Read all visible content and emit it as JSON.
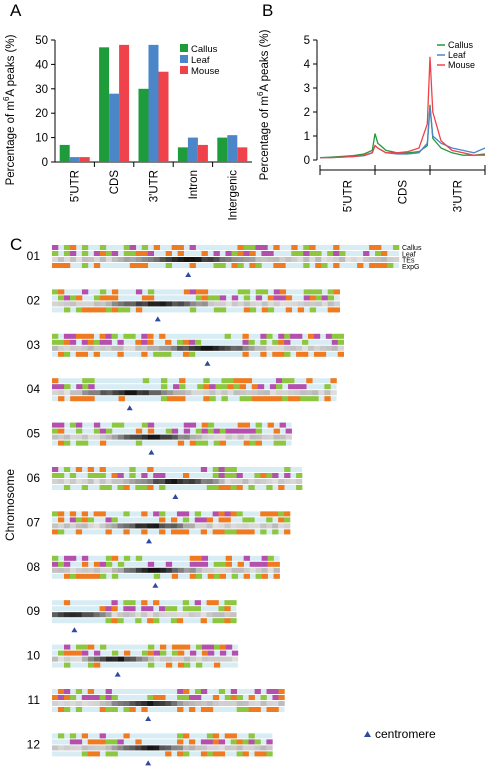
{
  "panels": {
    "a": "A",
    "b": "B",
    "c": "C"
  },
  "colors": {
    "callus": "#1e9b3b",
    "leaf": "#4a86c8",
    "mouse": "#f0424a",
    "track_green": "#8dc63f",
    "track_magenta": "#b44fae",
    "track_orange": "#f07a20",
    "track_bg": "#d8ecf4",
    "centromere": "#2f4a9e"
  },
  "chart_data": [
    {
      "type": "bar",
      "ylabel": "Percentage of m6A peaks (%)",
      "ylabel_main": "Percentage of m",
      "ylabel_sup": "6",
      "ylabel_rest": "A peaks (%)",
      "categories": [
        "5'UTR",
        "CDS",
        "3'UTR",
        "Intron",
        "Intergenic"
      ],
      "ylim": [
        0,
        50
      ],
      "yticks": [
        "0",
        "10",
        "20",
        "30",
        "40",
        "50"
      ],
      "legend_position": "top-right",
      "series": [
        {
          "name": "Callus",
          "values": [
            7,
            47,
            30,
            6,
            10
          ]
        },
        {
          "name": "Leaf",
          "values": [
            2,
            28,
            48,
            10,
            11
          ]
        },
        {
          "name": "Mouse",
          "values": [
            2,
            48,
            37,
            7,
            6
          ]
        }
      ]
    },
    {
      "type": "line",
      "ylabel": "Percentage of m6A peaks (%)",
      "ylabel_main": "Percentage of m",
      "ylabel_sup": "6",
      "ylabel_rest": "A peaks (%)",
      "regions": [
        "5'UTR",
        "CDS",
        "3'UTR"
      ],
      "ylim": [
        0,
        5
      ],
      "yticks": [
        "0",
        "1",
        "2",
        "3",
        "4",
        "5"
      ],
      "legend_position": "top-right",
      "series": [
        {
          "name": "Callus",
          "points": [
            [
              0,
              0.1
            ],
            [
              0.2,
              0.12
            ],
            [
              0.4,
              0.15
            ],
            [
              0.6,
              0.18
            ],
            [
              0.8,
              0.25
            ],
            [
              0.95,
              0.4
            ],
            [
              1.0,
              1.1
            ],
            [
              1.05,
              0.7
            ],
            [
              1.2,
              0.4
            ],
            [
              1.4,
              0.3
            ],
            [
              1.6,
              0.3
            ],
            [
              1.8,
              0.35
            ],
            [
              1.95,
              0.6
            ],
            [
              2.0,
              2.3
            ],
            [
              2.05,
              0.9
            ],
            [
              2.2,
              0.5
            ],
            [
              2.4,
              0.3
            ],
            [
              2.6,
              0.2
            ],
            [
              2.8,
              0.2
            ],
            [
              3.0,
              0.25
            ]
          ]
        },
        {
          "name": "Leaf",
          "points": [
            [
              0,
              0.1
            ],
            [
              0.2,
              0.1
            ],
            [
              0.4,
              0.12
            ],
            [
              0.6,
              0.14
            ],
            [
              0.8,
              0.18
            ],
            [
              0.95,
              0.3
            ],
            [
              1.0,
              0.6
            ],
            [
              1.05,
              0.5
            ],
            [
              1.2,
              0.3
            ],
            [
              1.4,
              0.25
            ],
            [
              1.6,
              0.25
            ],
            [
              1.8,
              0.3
            ],
            [
              1.95,
              0.7
            ],
            [
              2.0,
              2.2
            ],
            [
              2.05,
              1.0
            ],
            [
              2.2,
              0.7
            ],
            [
              2.4,
              0.5
            ],
            [
              2.6,
              0.4
            ],
            [
              2.8,
              0.3
            ],
            [
              3.0,
              0.5
            ]
          ]
        },
        {
          "name": "Mouse",
          "points": [
            [
              0,
              0.1
            ],
            [
              0.2,
              0.1
            ],
            [
              0.4,
              0.12
            ],
            [
              0.6,
              0.14
            ],
            [
              0.8,
              0.2
            ],
            [
              0.95,
              0.3
            ],
            [
              1.0,
              0.6
            ],
            [
              1.05,
              0.5
            ],
            [
              1.2,
              0.3
            ],
            [
              1.4,
              0.3
            ],
            [
              1.6,
              0.35
            ],
            [
              1.8,
              0.5
            ],
            [
              1.95,
              1.5
            ],
            [
              2.0,
              4.3
            ],
            [
              2.05,
              2.0
            ],
            [
              2.2,
              0.8
            ],
            [
              2.4,
              0.4
            ],
            [
              2.6,
              0.3
            ],
            [
              2.8,
              0.2
            ],
            [
              3.0,
              0.2
            ]
          ]
        }
      ]
    },
    {
      "type": "heatmap",
      "ylabel": "Chromosome",
      "track_labels": [
        "Callus",
        "Leaf",
        "TEs",
        "ExpG"
      ],
      "legend_label": "centromere",
      "chromosomes": [
        {
          "name": "01",
          "length": 43.3,
          "centromere": 17.0
        },
        {
          "name": "02",
          "length": 35.9,
          "centromere": 13.2
        },
        {
          "name": "03",
          "length": 36.4,
          "centromere": 19.4
        },
        {
          "name": "04",
          "length": 35.5,
          "centromere": 9.7
        },
        {
          "name": "05",
          "length": 29.9,
          "centromere": 12.4
        },
        {
          "name": "06",
          "length": 31.2,
          "centromere": 15.4
        },
        {
          "name": "07",
          "length": 29.7,
          "centromere": 12.1
        },
        {
          "name": "08",
          "length": 28.4,
          "centromere": 12.9
        },
        {
          "name": "09",
          "length": 23.0,
          "centromere": 2.8
        },
        {
          "name": "10",
          "length": 23.2,
          "centromere": 8.2
        },
        {
          "name": "11",
          "length": 29.0,
          "centromere": 12.0
        },
        {
          "name": "12",
          "length": 27.5,
          "centromere": 12.0
        }
      ]
    }
  ]
}
